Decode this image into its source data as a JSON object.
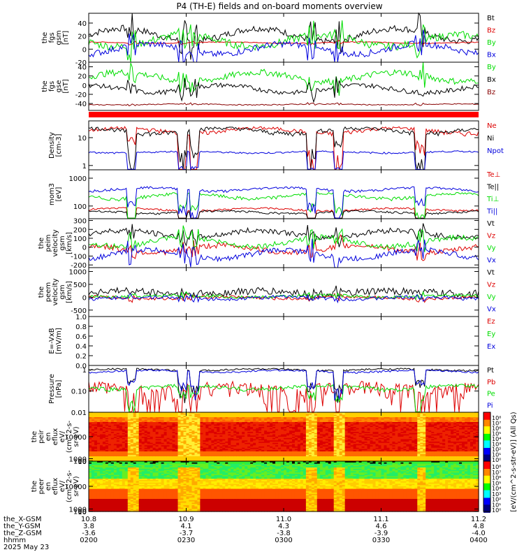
{
  "title": "P4 (TH-E) fields and on-board moments overview",
  "colors": {
    "black": "#000000",
    "red": "#dd0000",
    "green": "#00dd00",
    "blue": "#0000dd",
    "darkred": "#880000"
  },
  "chart_data": [
    {
      "type": "line",
      "id": "fgs_gsm",
      "ylabel": [
        "the",
        "fgs",
        "gsm",
        "[nT]"
      ],
      "ylim": [
        -20,
        55
      ],
      "yticks": [
        "40",
        "20",
        "0",
        "-20"
      ],
      "yticks_v": [
        40,
        20,
        0,
        -20
      ],
      "series": [
        {
          "name": "Bt",
          "color": "black",
          "base": 22,
          "amp": 10,
          "noise": 5
        },
        {
          "name": "Bz",
          "color": "red",
          "base": 10,
          "amp": 1,
          "noise": 0.6
        },
        {
          "name": "By",
          "color": "green",
          "base": 13,
          "amp": 9,
          "noise": 6
        },
        {
          "name": "Bx",
          "color": "blue",
          "base": 0,
          "amp": 8,
          "noise": 5
        }
      ]
    },
    {
      "type": "line",
      "id": "fgs_gse",
      "ylabel": [
        "the",
        "fgs",
        "gse",
        "[nT]"
      ],
      "ylim": [
        -55,
        50
      ],
      "yticks": [
        "40",
        "20",
        "0",
        "-20",
        "-40"
      ],
      "yticks_v": [
        40,
        20,
        0,
        -20,
        -40
      ],
      "series": [
        {
          "name": "By",
          "color": "green",
          "base": 18,
          "amp": 10,
          "noise": 7
        },
        {
          "name": "Bx",
          "color": "black",
          "base": -8,
          "amp": 8,
          "noise": 5
        },
        {
          "name": "Bz",
          "color": "darkred",
          "base": -42,
          "amp": 1,
          "noise": 1
        }
      ]
    },
    {
      "type": "line",
      "id": "density",
      "log": true,
      "ylabel": [
        "Density",
        "[cm-3]"
      ],
      "ylim": [
        0.7,
        40
      ],
      "yticks": [
        "10",
        "1"
      ],
      "yticks_v": [
        10,
        1
      ],
      "series": [
        {
          "name": "Ne",
          "color": "red",
          "base": 18,
          "amp": 4,
          "noise": 3
        },
        {
          "name": "Ni",
          "color": "black",
          "base": 18,
          "amp": 4,
          "noise": 3
        },
        {
          "name": "Npot",
          "color": "blue",
          "base": 3.0,
          "amp": 0.2,
          "noise": 0.2
        }
      ]
    },
    {
      "type": "line",
      "id": "temp",
      "log": true,
      "ylabel": [
        "mom3",
        "[eV]"
      ],
      "ylim": [
        35,
        2000
      ],
      "yticks": [
        "1000",
        "100"
      ],
      "yticks_v": [
        1000,
        100
      ],
      "series": [
        {
          "name": "Te⊥",
          "color": "red",
          "base": 75,
          "amp": 8,
          "noise": 6
        },
        {
          "name": "Te||",
          "color": "black",
          "base": 60,
          "amp": 6,
          "noise": 5
        },
        {
          "name": "Ti⊥",
          "color": "green",
          "base": 230,
          "amp": 50,
          "noise": 30
        },
        {
          "name": "Ti||",
          "color": "blue",
          "base": 400,
          "amp": 60,
          "noise": 40
        }
      ]
    },
    {
      "type": "line",
      "id": "peim",
      "ylabel": [
        "the",
        "peim",
        "velocity",
        "gsm",
        "[km/s]"
      ],
      "ylim": [
        -230,
        320
      ],
      "yticks": [
        "300",
        "200",
        "100",
        "0",
        "-100",
        "-200"
      ],
      "yticks_v": [
        300,
        200,
        100,
        0,
        -100,
        -200
      ],
      "series": [
        {
          "name": "Vt",
          "color": "black",
          "base": 150,
          "amp": 40,
          "noise": 30
        },
        {
          "name": "Vz",
          "color": "red",
          "base": -20,
          "amp": 40,
          "noise": 30
        },
        {
          "name": "Vy",
          "color": "green",
          "base": 60,
          "amp": 50,
          "noise": 30
        },
        {
          "name": "Vx",
          "color": "blue",
          "base": -80,
          "amp": 50,
          "noise": 30
        }
      ]
    },
    {
      "type": "line",
      "id": "peem",
      "ylabel": [
        "the",
        "peem",
        "velocity",
        "gsm",
        "[km/s]"
      ],
      "ylim": [
        -750,
        1150
      ],
      "yticks": [
        "1000",
        "500",
        "0",
        "-500"
      ],
      "yticks_v": [
        1000,
        500,
        0,
        -500
      ],
      "series": [
        {
          "name": "Vt",
          "color": "black",
          "base": 180,
          "amp": 60,
          "noise": 150
        },
        {
          "name": "Vz",
          "color": "red",
          "base": -20,
          "amp": 40,
          "noise": 60
        },
        {
          "name": "Vy",
          "color": "green",
          "base": 40,
          "amp": 40,
          "noise": 60
        },
        {
          "name": "Vx",
          "color": "blue",
          "base": -30,
          "amp": 40,
          "noise": 70
        }
      ]
    },
    {
      "type": "line",
      "id": "efield",
      "ylabel": [
        "E=-VxB",
        "[mV/m]"
      ],
      "ylim": [
        0,
        1
      ],
      "yticks": [
        "1.0",
        "0.8",
        "0.6",
        "0.4",
        "0.2",
        "0.0"
      ],
      "yticks_v": [
        1,
        0.8,
        0.6,
        0.4,
        0.2,
        0
      ],
      "series": [
        {
          "name": "Ez",
          "color": "red"
        },
        {
          "name": "Ey",
          "color": "green"
        },
        {
          "name": "Ex",
          "color": "blue"
        }
      ]
    },
    {
      "type": "line",
      "id": "pressure",
      "log": true,
      "ylabel": [
        "Pressure",
        "[nPa]"
      ],
      "ylim": [
        0.01,
        1.6
      ],
      "yticks": [
        "1",
        "0.10",
        "0.01"
      ],
      "yticks_v": [
        1,
        0.1,
        0.01
      ],
      "series": [
        {
          "name": "Pt",
          "color": "black",
          "base": 1.0,
          "amp": 0.1,
          "noise": 0.1
        },
        {
          "name": "Pb",
          "color": "red",
          "base": 0.12,
          "amp": 0.05,
          "noise": 0.12
        },
        {
          "name": "Pe",
          "color": "green",
          "base": 0.15,
          "amp": 0.03,
          "noise": 0.03
        },
        {
          "name": "Pi",
          "color": "blue",
          "base": 0.85,
          "amp": 0.1,
          "noise": 0.08
        }
      ]
    },
    {
      "type": "heatmap",
      "id": "peir",
      "ylabel": [
        "the",
        "peir",
        "en",
        "eflux",
        "eV/",
        "(cm^2-s-",
        "sr-eV)"
      ],
      "ylim": [
        7,
        20000
      ],
      "yticks": [
        "10000",
        "1000",
        "100",
        "10"
      ],
      "yticks_v": [
        10000,
        1000,
        100,
        10
      ]
    },
    {
      "type": "heatmap",
      "id": "peer",
      "ylabel": [
        "the",
        "peer",
        "en",
        "eflux",
        "eV/",
        "(cm^2-s-",
        "sr-eV)"
      ],
      "ylim": [
        7,
        20000
      ],
      "yticks": [
        "10000",
        "1000",
        "100",
        "10"
      ],
      "yticks_v": [
        10000,
        1000,
        100,
        10
      ]
    }
  ],
  "colorbar": {
    "ticks": [
      "10⁸",
      "10⁷",
      "10⁶",
      "10⁵",
      "10⁴",
      "10³",
      "10²",
      "10¹",
      "10⁰"
    ],
    "label": "[eV/(cm^2-s-str-eV)] (All Qs)"
  },
  "xaxis": {
    "ticks_v": [
      0,
      30,
      60,
      90,
      120
    ],
    "rows": [
      {
        "label": "the_X-GSM",
        "values": [
          "10.8",
          "10.9",
          "11.0",
          "11.1",
          "11.2"
        ]
      },
      {
        "label": "the_Y-GSM",
        "values": [
          "3.8",
          "4.1",
          "4.3",
          "4.6",
          "4.8"
        ]
      },
      {
        "label": "the_Z-GSM",
        "values": [
          "-3.6",
          "-3.7",
          "-3.8",
          "-3.9",
          "-4.0"
        ]
      },
      {
        "label": "hhmm",
        "values": [
          "0200",
          "0230",
          "0300",
          "0330",
          "0400"
        ]
      }
    ],
    "date": "2025 May 23"
  }
}
